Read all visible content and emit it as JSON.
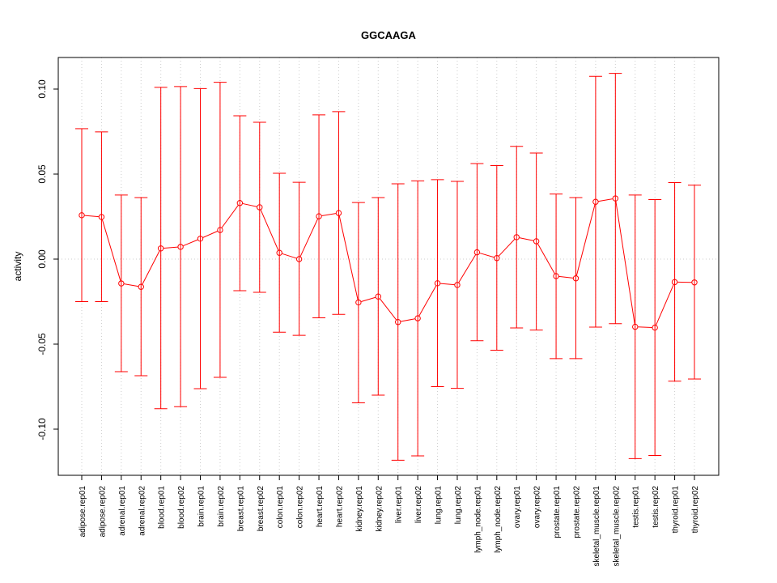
{
  "chart_data": {
    "type": "line",
    "title": "GGCAAGA",
    "xlabel": "",
    "ylabel": "activity",
    "ylim": [
      -0.127,
      0.118
    ],
    "yticks": [
      -0.1,
      -0.05,
      0.0,
      0.05,
      0.1
    ],
    "ytick_labels": [
      "-0.10",
      "-0.05",
      "0.00",
      "0.05",
      "0.10"
    ],
    "grid": true,
    "categories": [
      "adipose.rep01",
      "adipose.rep02",
      "adrenal.rep01",
      "adrenal.rep02",
      "blood.rep01",
      "blood.rep02",
      "brain.rep01",
      "brain.rep02",
      "breast.rep01",
      "breast.rep02",
      "colon.rep01",
      "colon.rep02",
      "heart.rep01",
      "heart.rep02",
      "kidney.rep01",
      "kidney.rep02",
      "liver.rep01",
      "liver.rep02",
      "lung.rep01",
      "lung.rep02",
      "lymph_node.rep01",
      "lymph_node.rep02",
      "ovary.rep01",
      "ovary.rep02",
      "prostate.rep01",
      "prostate.rep02",
      "skeletal_muscle.rep01",
      "skeletal_muscle.rep02",
      "testis.rep01",
      "testis.rep02",
      "thyroid.rep01",
      "thyroid.rep02"
    ],
    "series": [
      {
        "name": "activity",
        "color": "#ff0000",
        "values": [
          0.0258,
          0.0248,
          -0.0143,
          -0.0163,
          0.0063,
          0.0072,
          0.012,
          0.0171,
          0.033,
          0.0305,
          0.0037,
          0.0,
          0.0252,
          0.0271,
          -0.0255,
          -0.022,
          -0.037,
          -0.0348,
          -0.0142,
          -0.0152,
          0.004,
          0.0006,
          0.0129,
          0.0105,
          -0.01,
          -0.0113,
          0.0337,
          0.0357,
          -0.0398,
          -0.0403,
          -0.0135,
          -0.0137
        ],
        "upper": [
          0.0767,
          0.0748,
          0.0377,
          0.0362,
          0.101,
          0.1015,
          0.1003,
          0.104,
          0.0843,
          0.0805,
          0.0505,
          0.0452,
          0.0848,
          0.0867,
          0.0333,
          0.0362,
          0.0443,
          0.046,
          0.0467,
          0.0457,
          0.0562,
          0.055,
          0.0663,
          0.0624,
          0.0383,
          0.0362,
          0.1075,
          0.1092,
          0.0377,
          0.035,
          0.045,
          0.0435
        ],
        "lower": [
          -0.025,
          -0.025,
          -0.0662,
          -0.0686,
          -0.088,
          -0.0868,
          -0.0762,
          -0.0695,
          -0.0186,
          -0.0195,
          -0.043,
          -0.0448,
          -0.0345,
          -0.0325,
          -0.0845,
          -0.08,
          -0.1183,
          -0.1157,
          -0.075,
          -0.076,
          -0.048,
          -0.0536,
          -0.0405,
          -0.0417,
          -0.0585,
          -0.0585,
          -0.04,
          -0.038,
          -0.1173,
          -0.1155,
          -0.0718,
          -0.0705
        ]
      }
    ]
  }
}
